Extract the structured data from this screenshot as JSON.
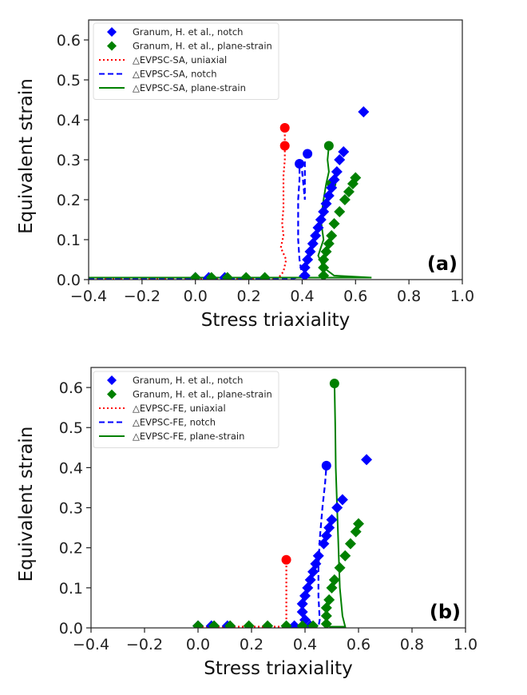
{
  "chart_data": [
    {
      "type": "scatter",
      "panel_label": "(a)",
      "xlabel": "Stress triaxiality",
      "ylabel": "Equivalent strain",
      "xlim": [
        -0.4,
        1.0
      ],
      "ylim": [
        0.0,
        0.65
      ],
      "xticks": [
        "−0.4",
        "−0.2",
        "0.0",
        "0.2",
        "0.4",
        "0.6",
        "0.8",
        "1.0"
      ],
      "xtick_values": [
        -0.4,
        -0.2,
        0.0,
        0.2,
        0.4,
        0.6,
        0.8,
        1.0
      ],
      "yticks": [
        "0.0",
        "0.1",
        "0.2",
        "0.3",
        "0.4",
        "0.5",
        "0.6"
      ],
      "ytick_values": [
        0.0,
        0.1,
        0.2,
        0.3,
        0.4,
        0.5,
        0.6
      ],
      "grid": false,
      "legend_position": "top-left",
      "series": [
        {
          "name": "Granum, H. et al., notch",
          "kind": "marker",
          "marker": "diamond",
          "color": "#0000ff",
          "points": [
            [
              0.0,
              0.005
            ],
            [
              0.05,
              0.005
            ],
            [
              0.11,
              0.005
            ],
            [
              0.41,
              0.01
            ],
            [
              0.41,
              0.03
            ],
            [
              0.42,
              0.05
            ],
            [
              0.43,
              0.07
            ],
            [
              0.44,
              0.09
            ],
            [
              0.45,
              0.11
            ],
            [
              0.46,
              0.13
            ],
            [
              0.47,
              0.15
            ],
            [
              0.48,
              0.17
            ],
            [
              0.49,
              0.19
            ],
            [
              0.5,
              0.21
            ],
            [
              0.51,
              0.23
            ],
            [
              0.52,
              0.25
            ],
            [
              0.53,
              0.27
            ],
            [
              0.54,
              0.3
            ],
            [
              0.555,
              0.32
            ],
            [
              0.63,
              0.42
            ]
          ]
        },
        {
          "name": "Granum, H. et al., plane-strain",
          "kind": "marker",
          "marker": "diamond",
          "color": "#008000",
          "points": [
            [
              0.0,
              0.005
            ],
            [
              0.06,
              0.005
            ],
            [
              0.12,
              0.005
            ],
            [
              0.19,
              0.005
            ],
            [
              0.26,
              0.005
            ],
            [
              0.48,
              0.01
            ],
            [
              0.48,
              0.03
            ],
            [
              0.48,
              0.05
            ],
            [
              0.49,
              0.07
            ],
            [
              0.5,
              0.09
            ],
            [
              0.51,
              0.11
            ],
            [
              0.52,
              0.14
            ],
            [
              0.54,
              0.17
            ],
            [
              0.56,
              0.2
            ],
            [
              0.575,
              0.22
            ],
            [
              0.59,
              0.24
            ],
            [
              0.6,
              0.255
            ]
          ]
        },
        {
          "name": "△EVPSC-SA, uniaxial",
          "kind": "line",
          "style": "dotted",
          "color": "#ff0000",
          "points": [
            [
              -0.4,
              0.003
            ],
            [
              0.31,
              0.003
            ],
            [
              0.33,
              0.02
            ],
            [
              0.34,
              0.05
            ],
            [
              0.32,
              0.08
            ],
            [
              0.33,
              0.11
            ],
            [
              0.325,
              0.14
            ],
            [
              0.33,
              0.18
            ],
            [
              0.33,
              0.22
            ],
            [
              0.33,
              0.26
            ],
            [
              0.335,
              0.3
            ],
            [
              0.335,
              0.335
            ],
            [
              0.335,
              0.38
            ]
          ],
          "end_markers": [
            [
              0.335,
              0.335
            ],
            [
              0.335,
              0.38
            ]
          ]
        },
        {
          "name": "△EVPSC-SA, notch",
          "kind": "line",
          "style": "dashed",
          "color": "#0000ff",
          "points": [
            [
              -0.4,
              0.003
            ],
            [
              0.37,
              0.003
            ],
            [
              0.4,
              0.01
            ],
            [
              0.39,
              0.05
            ],
            [
              0.385,
              0.1
            ],
            [
              0.385,
              0.15
            ],
            [
              0.385,
              0.2
            ],
            [
              0.39,
              0.25
            ],
            [
              0.39,
              0.29
            ],
            [
              0.4,
              0.27
            ],
            [
              0.41,
              0.2
            ],
            [
              0.41,
              0.22
            ],
            [
              0.41,
              0.3
            ],
            [
              0.42,
              0.315
            ]
          ],
          "end_markers": [
            [
              0.39,
              0.29
            ],
            [
              0.42,
              0.315
            ]
          ]
        },
        {
          "name": "△EVPSC-SA, plane-strain",
          "kind": "line",
          "style": "solid",
          "color": "#008000",
          "points": [
            [
              -0.4,
              0.005
            ],
            [
              0.66,
              0.005
            ],
            [
              0.52,
              0.01
            ],
            [
              0.48,
              0.03
            ],
            [
              0.46,
              0.06
            ],
            [
              0.48,
              0.1
            ],
            [
              0.47,
              0.15
            ],
            [
              0.48,
              0.2
            ],
            [
              0.49,
              0.24
            ],
            [
              0.5,
              0.27
            ],
            [
              0.495,
              0.3
            ],
            [
              0.5,
              0.335
            ]
          ],
          "end_markers": [
            [
              0.5,
              0.335
            ],
            [
              0.51,
              0.24
            ]
          ]
        }
      ]
    },
    {
      "type": "scatter",
      "panel_label": "(b)",
      "xlabel": "Stress triaxiality",
      "ylabel": "Equivalent strain",
      "xlim": [
        -0.4,
        1.0
      ],
      "ylim": [
        0.0,
        0.65
      ],
      "xticks": [
        "−0.4",
        "−0.2",
        "0.0",
        "0.2",
        "0.4",
        "0.6",
        "0.8",
        "1.0"
      ],
      "xtick_values": [
        -0.4,
        -0.2,
        0.0,
        0.2,
        0.4,
        0.6,
        0.8,
        1.0
      ],
      "yticks": [
        "0.0",
        "0.1",
        "0.2",
        "0.3",
        "0.4",
        "0.5",
        "0.6"
      ],
      "ytick_values": [
        0.0,
        0.1,
        0.2,
        0.3,
        0.4,
        0.5,
        0.6
      ],
      "grid": false,
      "legend_position": "top-left",
      "series": [
        {
          "name": "Granum, H. et al., notch",
          "kind": "marker",
          "marker": "diamond",
          "color": "#0000ff",
          "points": [
            [
              0.0,
              0.005
            ],
            [
              0.05,
              0.005
            ],
            [
              0.11,
              0.005
            ],
            [
              0.36,
              0.005
            ],
            [
              0.42,
              0.005
            ],
            [
              0.4,
              0.02
            ],
            [
              0.39,
              0.04
            ],
            [
              0.39,
              0.06
            ],
            [
              0.4,
              0.08
            ],
            [
              0.41,
              0.1
            ],
            [
              0.42,
              0.12
            ],
            [
              0.43,
              0.14
            ],
            [
              0.44,
              0.16
            ],
            [
              0.45,
              0.18
            ],
            [
              0.47,
              0.21
            ],
            [
              0.48,
              0.23
            ],
            [
              0.49,
              0.25
            ],
            [
              0.5,
              0.27
            ],
            [
              0.52,
              0.3
            ],
            [
              0.54,
              0.32
            ],
            [
              0.63,
              0.42
            ]
          ]
        },
        {
          "name": "Granum, H. et al., plane-strain",
          "kind": "marker",
          "marker": "diamond",
          "color": "#008000",
          "points": [
            [
              0.0,
              0.005
            ],
            [
              0.06,
              0.005
            ],
            [
              0.12,
              0.005
            ],
            [
              0.19,
              0.005
            ],
            [
              0.26,
              0.005
            ],
            [
              0.33,
              0.005
            ],
            [
              0.39,
              0.005
            ],
            [
              0.43,
              0.005
            ],
            [
              0.48,
              0.01
            ],
            [
              0.48,
              0.03
            ],
            [
              0.48,
              0.05
            ],
            [
              0.49,
              0.07
            ],
            [
              0.5,
              0.1
            ],
            [
              0.51,
              0.12
            ],
            [
              0.53,
              0.15
            ],
            [
              0.55,
              0.18
            ],
            [
              0.57,
              0.21
            ],
            [
              0.59,
              0.24
            ],
            [
              0.6,
              0.26
            ]
          ]
        },
        {
          "name": "△EVPSC-FE, uniaxial",
          "kind": "line",
          "style": "dotted",
          "color": "#ff0000",
          "points": [
            [
              0.0,
              0.003
            ],
            [
              0.33,
              0.003
            ],
            [
              0.33,
              0.17
            ]
          ],
          "end_markers": [
            [
              0.33,
              0.17
            ]
          ]
        },
        {
          "name": "△EVPSC-FE, notch",
          "kind": "line",
          "style": "dashed",
          "color": "#0000ff",
          "points": [
            [
              0.36,
              0.003
            ],
            [
              0.45,
              0.003
            ],
            [
              0.455,
              0.02
            ],
            [
              0.45,
              0.08
            ],
            [
              0.45,
              0.15
            ],
            [
              0.455,
              0.22
            ],
            [
              0.465,
              0.3
            ],
            [
              0.475,
              0.36
            ],
            [
              0.48,
              0.405
            ]
          ],
          "end_markers": [
            [
              0.48,
              0.405
            ]
          ]
        },
        {
          "name": "△EVPSC-FE, plane-strain",
          "kind": "line",
          "style": "solid",
          "color": "#008000",
          "points": [
            [
              0.49,
              0.003
            ],
            [
              0.55,
              0.003
            ],
            [
              0.54,
              0.03
            ],
            [
              0.53,
              0.1
            ],
            [
              0.525,
              0.2
            ],
            [
              0.52,
              0.3
            ],
            [
              0.515,
              0.4
            ],
            [
              0.513,
              0.5
            ],
            [
              0.51,
              0.61
            ]
          ],
          "end_markers": [
            [
              0.51,
              0.61
            ]
          ]
        }
      ]
    }
  ]
}
